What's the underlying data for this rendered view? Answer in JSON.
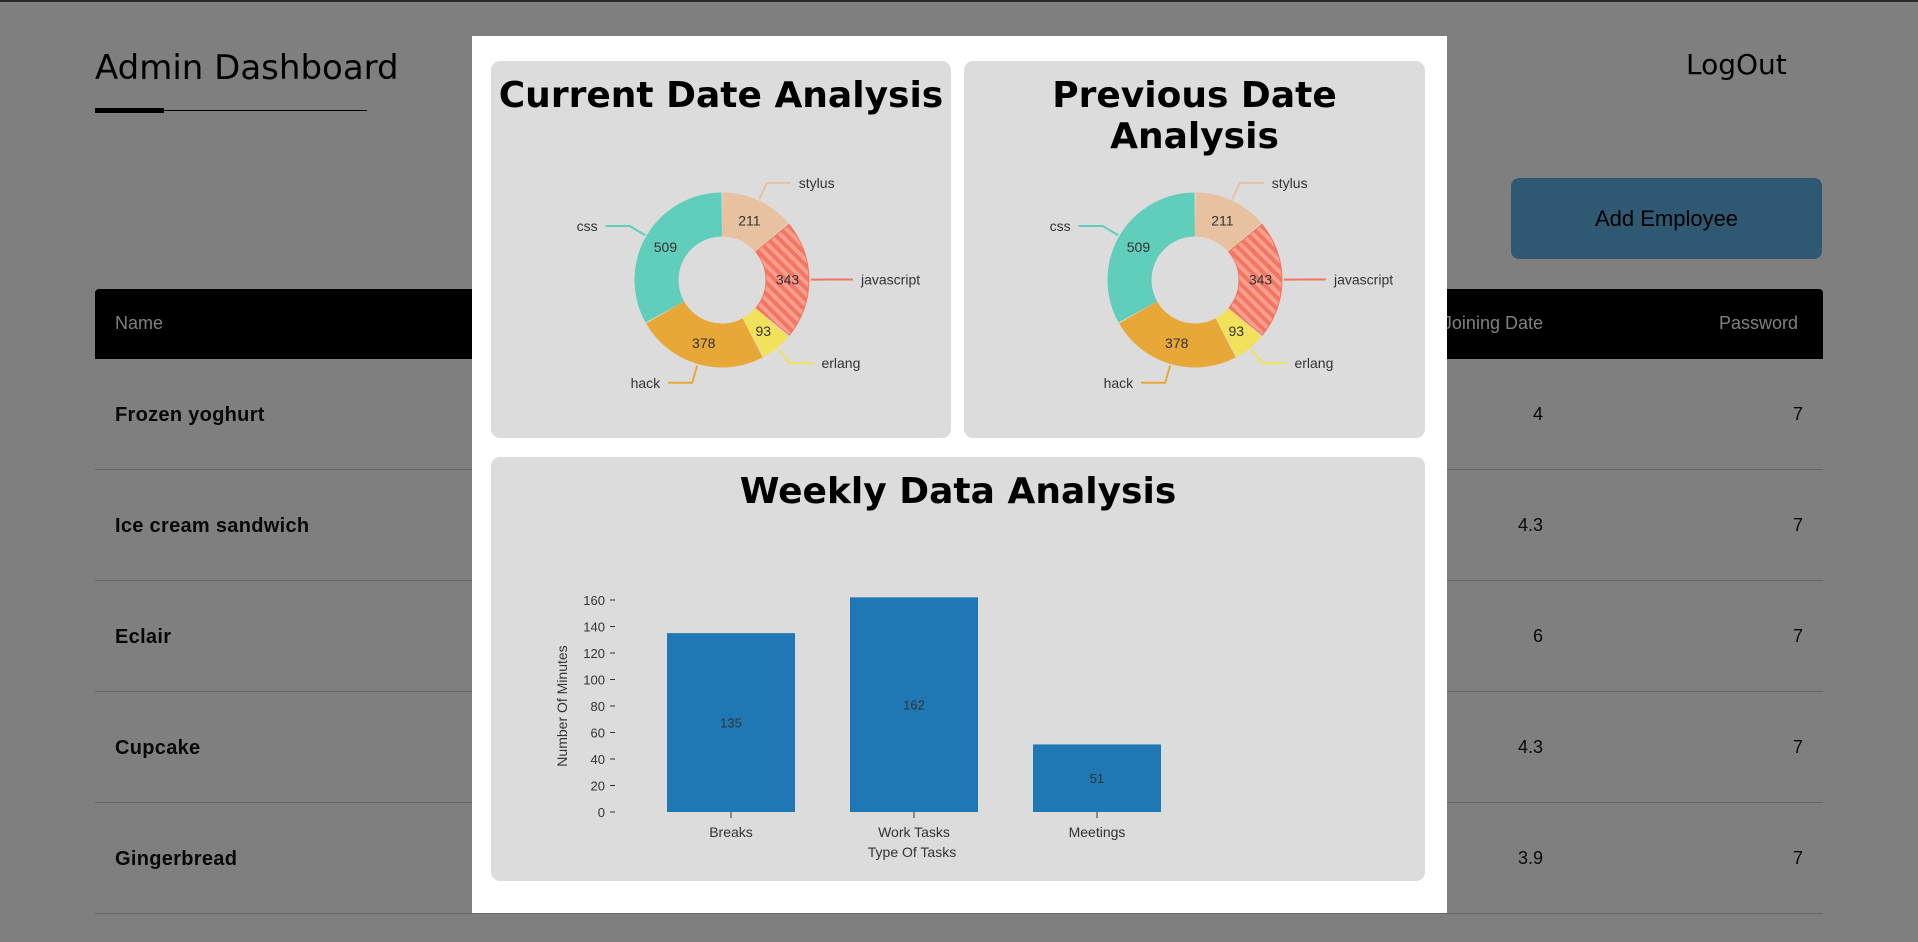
{
  "header": {
    "title": "Admin Dashboard",
    "logout_label": "LogOut"
  },
  "actions": {
    "add_employee_label": "Add Employee"
  },
  "table": {
    "columns": {
      "name": "Name",
      "joining_date": "Joining Date",
      "password": "Password"
    },
    "rows": [
      {
        "name": "Frozen yoghurt",
        "joining_date": "4",
        "password": "7"
      },
      {
        "name": "Ice cream sandwich",
        "joining_date": "4.3",
        "password": "7"
      },
      {
        "name": "Eclair",
        "joining_date": "6",
        "password": "7"
      },
      {
        "name": "Cupcake",
        "joining_date": "4.3",
        "password": "7"
      },
      {
        "name": "Gingerbread",
        "joining_date": "3.9",
        "password": "7"
      }
    ]
  },
  "modal": {
    "current_title": "Current Date Analysis",
    "previous_title": "Previous Date Analysis",
    "weekly_title": "Weekly Data Analysis"
  },
  "colors": {
    "css": "#61cdbb",
    "stylus": "#e8c1a0",
    "javascript": "#f47560",
    "erlang": "#f1e15b",
    "hack": "#e8a838",
    "bar": "#1f77b4"
  },
  "chart_data": [
    {
      "type": "pie",
      "title": "Current Date Analysis",
      "slices": [
        {
          "label": "stylus",
          "value": 211
        },
        {
          "label": "javascript",
          "value": 343
        },
        {
          "label": "erlang",
          "value": 93
        },
        {
          "label": "hack",
          "value": 378
        },
        {
          "label": "css",
          "value": 509
        }
      ]
    },
    {
      "type": "pie",
      "title": "Previous Date Analysis",
      "slices": [
        {
          "label": "stylus",
          "value": 211
        },
        {
          "label": "javascript",
          "value": 343
        },
        {
          "label": "erlang",
          "value": 93
        },
        {
          "label": "hack",
          "value": 378
        },
        {
          "label": "css",
          "value": 509
        }
      ]
    },
    {
      "type": "bar",
      "title": "Weekly Data Analysis",
      "categories": [
        "Breaks",
        "Work Tasks",
        "Meetings"
      ],
      "values": [
        135,
        162,
        51
      ],
      "xlabel": "Type Of Tasks",
      "ylabel": "Number Of Minutes",
      "ylim": [
        0,
        160
      ],
      "yticks": [
        "0",
        "20",
        "40",
        "60",
        "80",
        "100",
        "120",
        "140",
        "160"
      ]
    }
  ]
}
